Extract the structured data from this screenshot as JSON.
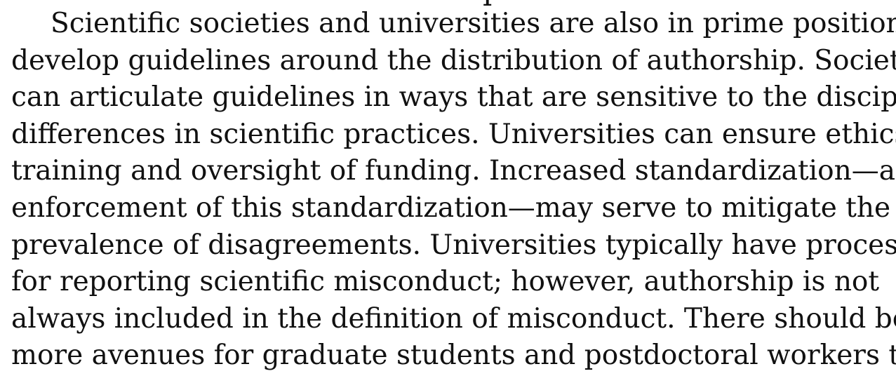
{
  "document": {
    "cut_off_top_glyph": "p",
    "paragraph_lines": [
      "Scientific societies and universities are also in prime positions to",
      "develop guidelines around the distribution of authorship. Societies",
      "can articulate guidelines in ways that are sensitive to the disciplinary",
      "differences in scientific practices. Universities can ensure ethics",
      "training and oversight of funding. Increased standardization—and",
      "enforcement of this standardization—may serve to mitigate the",
      "prevalence of disagreements. Universities typically have processes",
      "for reporting scientific misconduct; however, authorship is not",
      "always included in the definition of misconduct. There should be",
      "more avenues for graduate students and postdoctoral workers to"
    ]
  }
}
